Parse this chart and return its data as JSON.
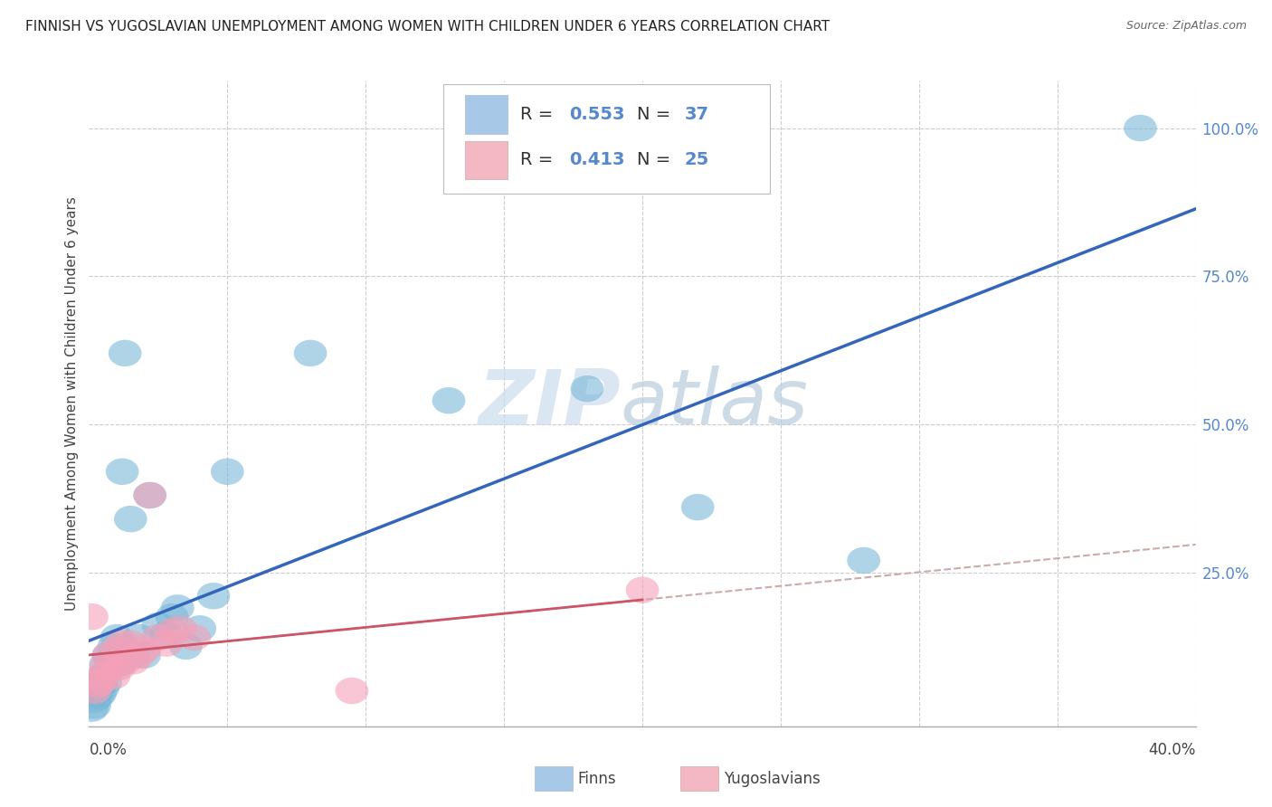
{
  "title": "FINNISH VS YUGOSLAVIAN UNEMPLOYMENT AMONG WOMEN WITH CHILDREN UNDER 6 YEARS CORRELATION CHART",
  "source": "Source: ZipAtlas.com",
  "ylabel": "Unemployment Among Women with Children Under 6 years",
  "ytick_labels": [
    "100.0%",
    "75.0%",
    "50.0%",
    "25.0%"
  ],
  "ytick_positions": [
    1.0,
    0.75,
    0.5,
    0.25
  ],
  "xlim": [
    0.0,
    0.4
  ],
  "ylim": [
    -0.01,
    1.08
  ],
  "legend_r1": "0.553",
  "legend_n1": "37",
  "legend_r2": "0.413",
  "legend_n2": "25",
  "legend_color1": "#a8c8e8",
  "legend_color2": "#f4b8c4",
  "finns_color": "#7ab8d8",
  "yugoslavians_color": "#f4a0b8",
  "regression_finns_color": "#3366bb",
  "regression_yugoslavians_color": "#cc5566",
  "regression_yugos_dashed_color": "#ccaaaa",
  "watermark_zip_color": "#ccdcee",
  "watermark_atlas_color": "#b8ccdd",
  "finns_x": [
    0.001,
    0.002,
    0.002,
    0.003,
    0.003,
    0.004,
    0.004,
    0.005,
    0.005,
    0.006,
    0.006,
    0.007,
    0.008,
    0.009,
    0.01,
    0.011,
    0.012,
    0.013,
    0.015,
    0.016,
    0.018,
    0.02,
    0.022,
    0.025,
    0.028,
    0.03,
    0.032,
    0.035,
    0.04,
    0.045,
    0.05,
    0.08,
    0.13,
    0.18,
    0.22,
    0.28,
    0.38
  ],
  "finns_y": [
    0.02,
    0.025,
    0.035,
    0.04,
    0.05,
    0.045,
    0.06,
    0.055,
    0.075,
    0.065,
    0.095,
    0.11,
    0.095,
    0.125,
    0.14,
    0.095,
    0.42,
    0.62,
    0.34,
    0.11,
    0.14,
    0.11,
    0.38,
    0.16,
    0.145,
    0.175,
    0.19,
    0.125,
    0.155,
    0.21,
    0.42,
    0.62,
    0.54,
    0.56,
    0.36,
    0.27,
    1.0
  ],
  "yugoslavians_x": [
    0.001,
    0.002,
    0.003,
    0.004,
    0.005,
    0.006,
    0.007,
    0.008,
    0.009,
    0.01,
    0.011,
    0.012,
    0.013,
    0.015,
    0.016,
    0.018,
    0.02,
    0.022,
    0.025,
    0.028,
    0.03,
    0.033,
    0.038,
    0.095,
    0.2
  ],
  "yugoslavians_y": [
    0.175,
    0.05,
    0.06,
    0.065,
    0.075,
    0.09,
    0.11,
    0.09,
    0.075,
    0.12,
    0.09,
    0.13,
    0.1,
    0.13,
    0.1,
    0.11,
    0.12,
    0.38,
    0.14,
    0.13,
    0.15,
    0.155,
    0.14,
    0.05,
    0.22
  ]
}
